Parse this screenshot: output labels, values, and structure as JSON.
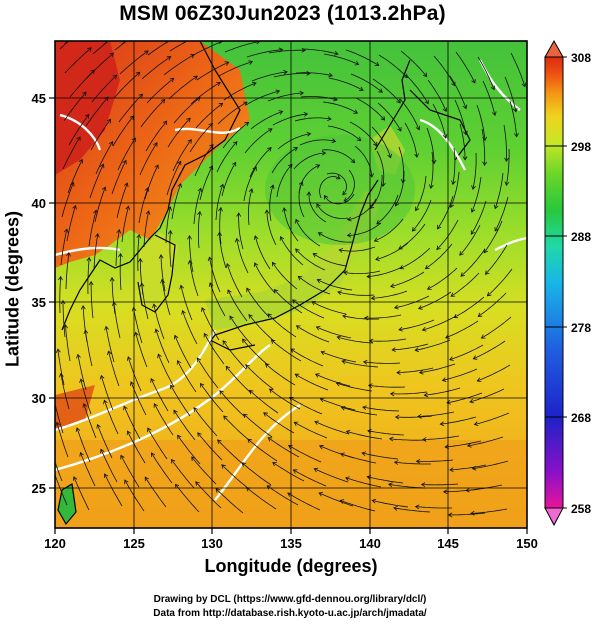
{
  "title": "MSM 06Z30Jun2023 (1013.2hPa)",
  "axes": {
    "xlabel": "Longitude (degrees)",
    "ylabel": "Latitude  (degrees)",
    "xlim": [
      120,
      150
    ],
    "ylim": [
      22.4,
      47.6
    ],
    "xticks": [
      "120",
      "125",
      "130",
      "135",
      "140",
      "145",
      "150"
    ],
    "yticks": [
      "25",
      "30",
      "35",
      "40",
      "45"
    ]
  },
  "colorbar": {
    "min": 258,
    "max": 308,
    "labels": [
      "308",
      "298",
      "288",
      "278",
      "268",
      "258"
    ],
    "colors": [
      "#e8149a",
      "#8a10c8",
      "#1e22c8",
      "#1f5ee0",
      "#18b6e8",
      "#20d8a8",
      "#28c83c",
      "#6ad628",
      "#c8e628",
      "#f0d21c",
      "#f39614",
      "#ee5512",
      "#dd2a10"
    ]
  },
  "credits": {
    "line1": "Drawing by DCL (https://www.gfd-dennou.org/library/dcl/)",
    "line2": "Data from http://database.rish.kyoto-u.ac.jp/arch/jmadata/"
  }
}
